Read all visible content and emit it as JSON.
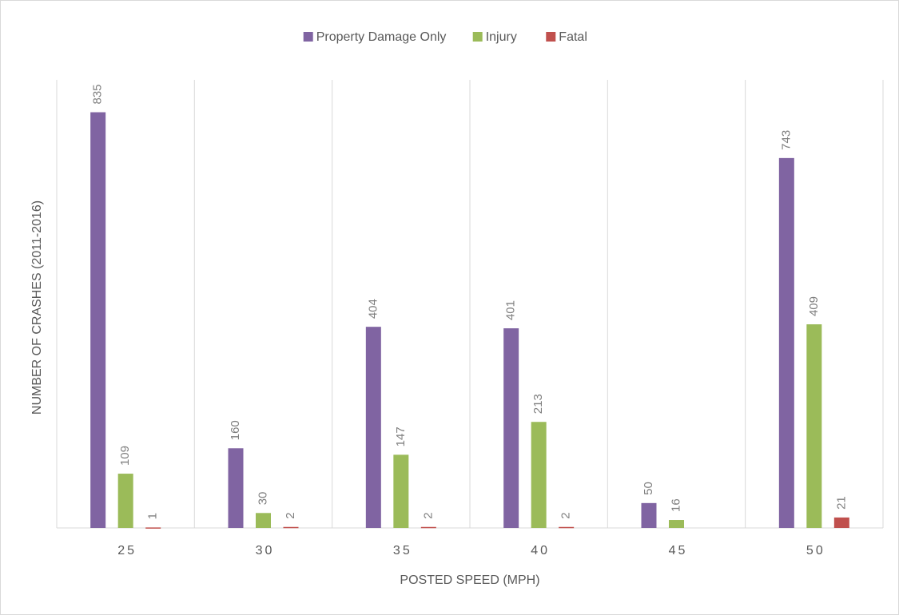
{
  "chart_data": {
    "type": "bar",
    "x_label": "POSTED SPEED (MPH)",
    "y_label": "NUMBER OF CRASHES (2011-2016)",
    "categories": [
      "25",
      "30",
      "35",
      "40",
      "45",
      "50"
    ],
    "series": [
      {
        "name": "Property Damage Only",
        "color": "#8064a2",
        "values": [
          835,
          160,
          404,
          401,
          50,
          743
        ]
      },
      {
        "name": "Injury",
        "color": "#9bbb59",
        "values": [
          109,
          30,
          147,
          213,
          16,
          409
        ]
      },
      {
        "name": "Fatal",
        "color": "#c0504d",
        "values": [
          1,
          2,
          2,
          2,
          null,
          21
        ]
      }
    ],
    "ylim": [
      0,
      900
    ],
    "legend": "top"
  }
}
